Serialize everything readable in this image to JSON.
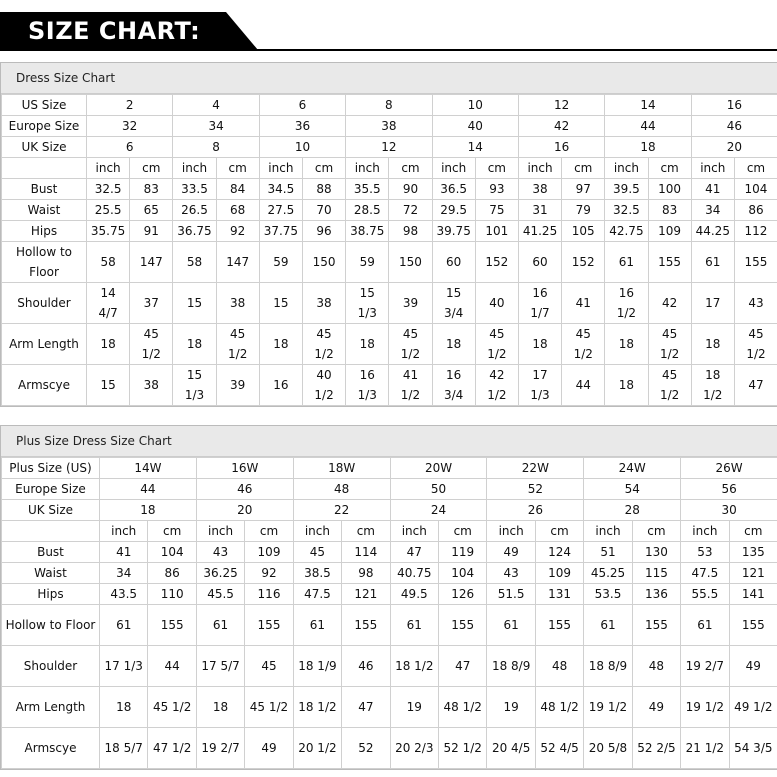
{
  "header": {
    "title": "SIZE CHART:"
  },
  "tables": [
    {
      "title": "Dress Size Chart",
      "units": [
        "inch",
        "cm"
      ],
      "size_rows": [
        {
          "label": "US Size",
          "values": [
            "2",
            "4",
            "6",
            "8",
            "10",
            "12",
            "14",
            "16"
          ]
        },
        {
          "label": "Europe Size",
          "values": [
            "32",
            "34",
            "36",
            "38",
            "40",
            "42",
            "44",
            "46"
          ]
        },
        {
          "label": "UK Size",
          "values": [
            "6",
            "8",
            "10",
            "12",
            "14",
            "16",
            "18",
            "20"
          ]
        }
      ],
      "measure_rows": [
        {
          "label": "Bust",
          "values": [
            "32.5",
            "83",
            "33.5",
            "84",
            "34.5",
            "88",
            "35.5",
            "90",
            "36.5",
            "93",
            "38",
            "97",
            "39.5",
            "100",
            "41",
            "104"
          ]
        },
        {
          "label": "Waist",
          "values": [
            "25.5",
            "65",
            "26.5",
            "68",
            "27.5",
            "70",
            "28.5",
            "72",
            "29.5",
            "75",
            "31",
            "79",
            "32.5",
            "83",
            "34",
            "86"
          ]
        },
        {
          "label": "Hips",
          "values": [
            "35.75",
            "91",
            "36.75",
            "92",
            "37.75",
            "96",
            "38.75",
            "98",
            "39.75",
            "101",
            "41.25",
            "105",
            "42.75",
            "109",
            "44.25",
            "112"
          ]
        },
        {
          "label": "Hollow to Floor",
          "values": [
            "58",
            "147",
            "58",
            "147",
            "59",
            "150",
            "59",
            "150",
            "60",
            "152",
            "60",
            "152",
            "61",
            "155",
            "61",
            "155"
          ]
        },
        {
          "label": "Shoulder",
          "values": [
            "14 4/7",
            "37",
            "15",
            "38",
            "15",
            "38",
            "15 1/3",
            "39",
            "15 3/4",
            "40",
            "16 1/7",
            "41",
            "16 1/2",
            "42",
            "17",
            "43"
          ]
        },
        {
          "label": "Arm Length",
          "values": [
            "18",
            "45 1/2",
            "18",
            "45 1/2",
            "18",
            "45 1/2",
            "18",
            "45 1/2",
            "18",
            "45 1/2",
            "18",
            "45 1/2",
            "18",
            "45 1/2",
            "18",
            "45 1/2"
          ]
        },
        {
          "label": "Armscye",
          "values": [
            "15",
            "38",
            "15 1/3",
            "39",
            "16",
            "40 1/2",
            "16 1/3",
            "41 1/2",
            "16 3/4",
            "42 1/2",
            "17 1/3",
            "44",
            "18",
            "45 1/2",
            "18 1/2",
            "47"
          ]
        }
      ]
    },
    {
      "title": "Plus Size Dress Size Chart",
      "units": [
        "inch",
        "cm"
      ],
      "size_rows": [
        {
          "label": "Plus Size (US)",
          "values": [
            "14W",
            "16W",
            "18W",
            "20W",
            "22W",
            "24W",
            "26W"
          ]
        },
        {
          "label": "Europe Size",
          "values": [
            "44",
            "46",
            "48",
            "50",
            "52",
            "54",
            "56"
          ]
        },
        {
          "label": "UK Size",
          "values": [
            "18",
            "20",
            "22",
            "24",
            "26",
            "28",
            "30"
          ]
        }
      ],
      "measure_rows": [
        {
          "label": "Bust",
          "values": [
            "41",
            "104",
            "43",
            "109",
            "45",
            "114",
            "47",
            "119",
            "49",
            "124",
            "51",
            "130",
            "53",
            "135"
          ]
        },
        {
          "label": "Waist",
          "values": [
            "34",
            "86",
            "36.25",
            "92",
            "38.5",
            "98",
            "40.75",
            "104",
            "43",
            "109",
            "45.25",
            "115",
            "47.5",
            "121"
          ]
        },
        {
          "label": "Hips",
          "values": [
            "43.5",
            "110",
            "45.5",
            "116",
            "47.5",
            "121",
            "49.5",
            "126",
            "51.5",
            "131",
            "53.5",
            "136",
            "55.5",
            "141"
          ]
        },
        {
          "label": "Hollow to Floor",
          "values": [
            "61",
            "155",
            "61",
            "155",
            "61",
            "155",
            "61",
            "155",
            "61",
            "155",
            "61",
            "155",
            "61",
            "155"
          ]
        },
        {
          "label": "Shoulder",
          "values": [
            "17 1/3",
            "44",
            "17 5/7",
            "45",
            "18 1/9",
            "46",
            "18 1/2",
            "47",
            "18 8/9",
            "48",
            "18 8/9",
            "48",
            "19 2/7",
            "49"
          ]
        },
        {
          "label": "Arm Length",
          "values": [
            "18",
            "45 1/2",
            "18",
            "45 1/2",
            "18 1/2",
            "47",
            "19",
            "48 1/2",
            "19",
            "48 1/2",
            "19 1/2",
            "49",
            "19 1/2",
            "49 1/2"
          ]
        },
        {
          "label": "Armscye",
          "values": [
            "18 5/7",
            "47 1/2",
            "19 2/7",
            "49",
            "20 1/2",
            "52",
            "20 2/3",
            "52 1/2",
            "20 4/5",
            "52 4/5",
            "20 5/8",
            "52 2/5",
            "21 1/2",
            "54 3/5"
          ]
        }
      ]
    }
  ]
}
